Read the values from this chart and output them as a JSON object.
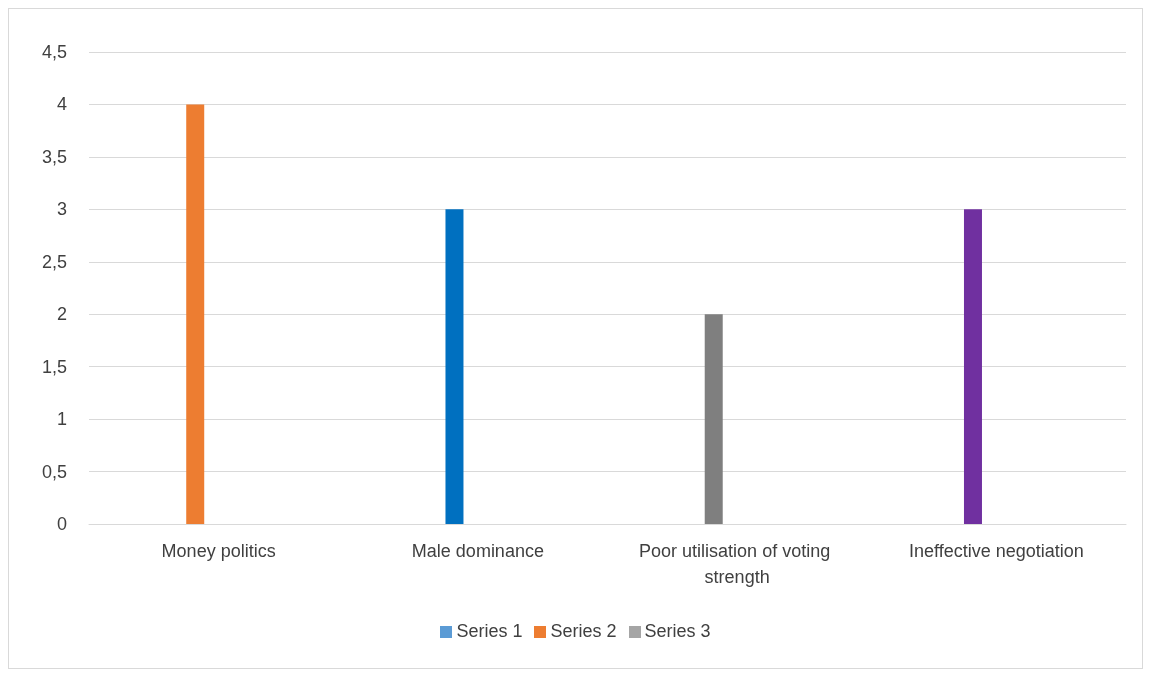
{
  "chart_data": {
    "type": "bar",
    "categories": [
      "Money politics",
      "Male dominance",
      "Poor utilisation of voting strength",
      "Ineffective negotiation"
    ],
    "series": [
      {
        "name": "Series 1",
        "color": "#5b9bd5",
        "colors": [
          "#ed7d31",
          "#0070c0",
          "#7f7f7f",
          "#7030a0"
        ],
        "values": [
          4,
          3,
          2,
          3
        ]
      },
      {
        "name": "Series 2",
        "color": "#ed7d31",
        "values": [
          null,
          null,
          null,
          null
        ]
      },
      {
        "name": "Series 3",
        "color": "#a5a5a5",
        "values": [
          null,
          null,
          null,
          null
        ]
      }
    ],
    "ylim": [
      0,
      4.5
    ],
    "yticks": [
      0,
      {
        "value": 0.5,
        "label": "0,5"
      },
      1,
      {
        "value": 1.5,
        "label": "1,5"
      },
      2,
      {
        "value": 2.5,
        "label": "2,5"
      },
      3,
      {
        "value": 3.5,
        "label": "3,5"
      },
      4,
      {
        "value": 4.5,
        "label": "4,5"
      }
    ],
    "grid": "y",
    "legend": "bottom"
  }
}
